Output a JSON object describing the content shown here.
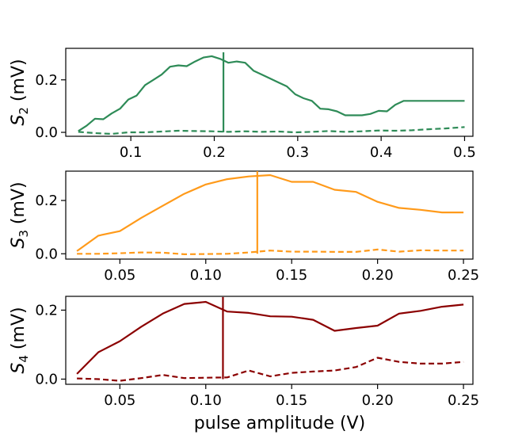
{
  "chart_data": [
    {
      "type": "line",
      "ylabel_main": "S",
      "ylabel_sub": "2",
      "ylabel_unit": " (mV)",
      "xlim": [
        0.022,
        0.51
      ],
      "ylim": [
        -0.015,
        0.32
      ],
      "xticks": [
        0.1,
        0.2,
        0.3,
        0.4,
        0.5
      ],
      "xtick_labels": [
        "0.1",
        "0.2",
        "0.3",
        "0.4",
        "0.5"
      ],
      "yticks": [
        0.0,
        0.2
      ],
      "ytick_labels": [
        "0.0",
        "0.2"
      ],
      "color": "#2e8b57",
      "vline_x": 0.211,
      "vline_range": [
        0.0,
        0.305
      ],
      "series": [
        {
          "style": "solid",
          "x": [
            0.037,
            0.047,
            0.057,
            0.067,
            0.077,
            0.087,
            0.097,
            0.107,
            0.117,
            0.127,
            0.137,
            0.147,
            0.157,
            0.167,
            0.177,
            0.187,
            0.197,
            0.207,
            0.217,
            0.227,
            0.237,
            0.247,
            0.257,
            0.267,
            0.277,
            0.287,
            0.297,
            0.307,
            0.317,
            0.327,
            0.337,
            0.347,
            0.357,
            0.367,
            0.377,
            0.387,
            0.397,
            0.407,
            0.417,
            0.427,
            0.437,
            0.447,
            0.457,
            0.467,
            0.477,
            0.487,
            0.5
          ],
          "y": [
            0.005,
            0.025,
            0.052,
            0.05,
            0.072,
            0.09,
            0.125,
            0.14,
            0.18,
            0.2,
            0.22,
            0.25,
            0.255,
            0.252,
            0.27,
            0.285,
            0.29,
            0.28,
            0.265,
            0.27,
            0.265,
            0.235,
            0.22,
            0.205,
            0.19,
            0.175,
            0.145,
            0.13,
            0.12,
            0.09,
            0.088,
            0.08,
            0.065,
            0.065,
            0.065,
            0.07,
            0.082,
            0.08,
            0.105,
            0.12,
            0.12,
            0.12,
            0.12,
            0.12,
            0.12,
            0.12,
            0.12
          ]
        },
        {
          "style": "dashed",
          "x": [
            0.037,
            0.057,
            0.077,
            0.097,
            0.117,
            0.137,
            0.157,
            0.177,
            0.197,
            0.217,
            0.237,
            0.257,
            0.277,
            0.297,
            0.317,
            0.337,
            0.357,
            0.377,
            0.397,
            0.417,
            0.437,
            0.457,
            0.477,
            0.5
          ],
          "y": [
            0.002,
            -0.003,
            -0.006,
            0.0,
            0.0,
            0.003,
            0.006,
            0.005,
            0.004,
            0.002,
            0.004,
            0.002,
            0.003,
            0.0,
            0.002,
            0.005,
            0.002,
            0.004,
            0.007,
            0.006,
            0.008,
            0.012,
            0.015,
            0.02
          ]
        }
      ]
    },
    {
      "type": "line",
      "ylabel_main": "S",
      "ylabel_sub": "3",
      "ylabel_unit": " (mV)",
      "xlim": [
        0.0185,
        0.2555
      ],
      "ylim": [
        -0.02,
        0.31
      ],
      "xticks": [
        0.05,
        0.1,
        0.15,
        0.2,
        0.25
      ],
      "xtick_labels": [
        "0.05",
        "0.10",
        "0.15",
        "0.20",
        "0.25"
      ],
      "yticks": [
        0.0,
        0.2
      ],
      "ytick_labels": [
        "0.0",
        "0.2"
      ],
      "color": "#ff9a1a",
      "vline_x": 0.13,
      "vline_range": [
        0.0,
        0.31
      ],
      "series": [
        {
          "style": "solid",
          "x": [
            0.025,
            0.0375,
            0.05,
            0.0625,
            0.075,
            0.0875,
            0.1,
            0.1125,
            0.125,
            0.1375,
            0.15,
            0.1625,
            0.175,
            0.1875,
            0.2,
            0.2125,
            0.225,
            0.2375,
            0.25
          ],
          "y": [
            0.01,
            0.068,
            0.085,
            0.135,
            0.18,
            0.225,
            0.26,
            0.28,
            0.29,
            0.295,
            0.27,
            0.27,
            0.24,
            0.232,
            0.195,
            0.172,
            0.165,
            0.155,
            0.155
          ]
        },
        {
          "style": "dashed",
          "x": [
            0.025,
            0.0375,
            0.05,
            0.0625,
            0.075,
            0.0875,
            0.1,
            0.1125,
            0.125,
            0.1375,
            0.15,
            0.1625,
            0.175,
            0.1875,
            0.2,
            0.2125,
            0.225,
            0.2375,
            0.25
          ],
          "y": [
            0.0,
            0.0,
            0.002,
            0.005,
            0.004,
            -0.002,
            -0.001,
            0.0,
            0.005,
            0.012,
            0.008,
            0.008,
            0.007,
            0.007,
            0.016,
            0.008,
            0.013,
            0.012,
            0.012
          ]
        }
      ]
    },
    {
      "type": "line",
      "ylabel_main": "S",
      "ylabel_sub": "4",
      "ylabel_unit": " (mV)",
      "xlim": [
        0.0185,
        0.2555
      ],
      "ylim": [
        -0.015,
        0.24
      ],
      "xticks": [
        0.05,
        0.1,
        0.15,
        0.2,
        0.25
      ],
      "xtick_labels": [
        "0.05",
        "0.10",
        "0.15",
        "0.20",
        "0.25"
      ],
      "yticks": [
        0.0,
        0.2
      ],
      "ytick_labels": [
        "0.0",
        "0.2"
      ],
      "color": "#8b0000",
      "vline_x": 0.11,
      "vline_range": [
        0.0,
        0.238
      ],
      "xlabel": "pulse amplitude (V)",
      "series": [
        {
          "style": "solid",
          "x": [
            0.025,
            0.0375,
            0.05,
            0.0625,
            0.075,
            0.0875,
            0.1,
            0.1125,
            0.125,
            0.1375,
            0.15,
            0.1625,
            0.175,
            0.1875,
            0.2,
            0.2125,
            0.225,
            0.2375,
            0.25
          ],
          "y": [
            0.015,
            0.078,
            0.11,
            0.152,
            0.19,
            0.218,
            0.224,
            0.196,
            0.192,
            0.182,
            0.181,
            0.172,
            0.14,
            0.148,
            0.155,
            0.19,
            0.198,
            0.21,
            0.216
          ]
        },
        {
          "style": "dashed",
          "x": [
            0.025,
            0.0375,
            0.05,
            0.0625,
            0.075,
            0.0875,
            0.1,
            0.1125,
            0.125,
            0.1375,
            0.15,
            0.1625,
            0.175,
            0.1875,
            0.2,
            0.2125,
            0.225,
            0.2375,
            0.25
          ],
          "y": [
            0.002,
            0.0,
            -0.005,
            0.003,
            0.012,
            0.003,
            0.004,
            0.005,
            0.025,
            0.008,
            0.018,
            0.022,
            0.025,
            0.035,
            0.062,
            0.05,
            0.045,
            0.045,
            0.05
          ]
        }
      ]
    }
  ]
}
